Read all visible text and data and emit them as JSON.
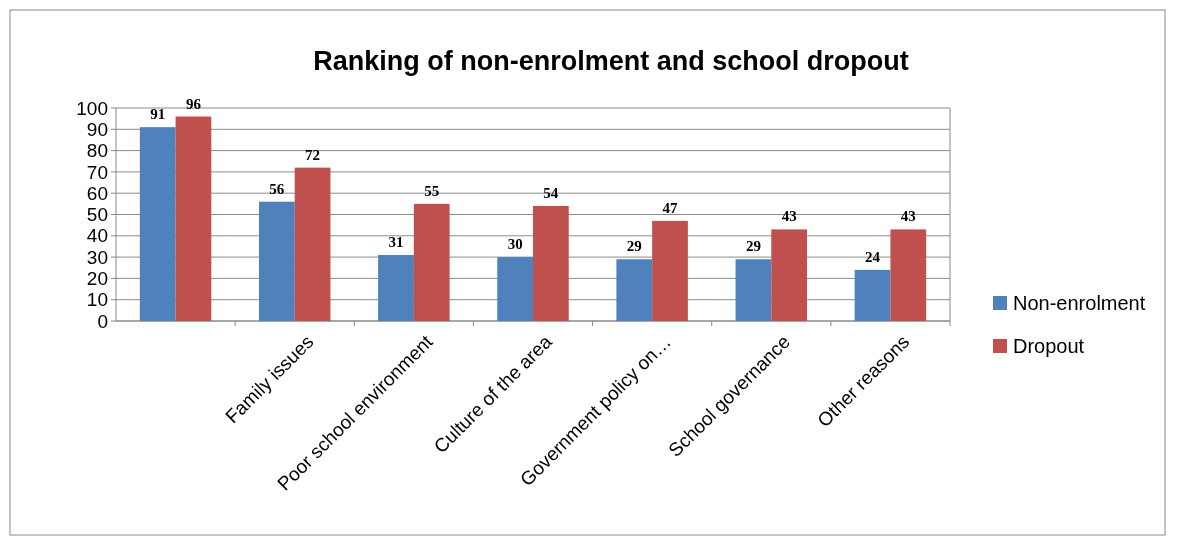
{
  "chart_data": {
    "type": "bar",
    "title": "Ranking of non-enrolment and school dropout",
    "categories": [
      null,
      "Family  issues",
      "Poor school environment",
      "Culture of the area",
      "Government policy on…",
      "School governance",
      "Other reasons"
    ],
    "series": [
      {
        "name": "Non-enrolment",
        "color": "#4f81bd",
        "values": [
          91,
          56,
          31,
          30,
          29,
          29,
          24
        ]
      },
      {
        "name": "Dropout",
        "color": "#c0504d",
        "values": [
          96,
          72,
          55,
          54,
          47,
          43,
          43
        ]
      }
    ],
    "ylim": [
      0,
      100
    ],
    "yticks": [
      0,
      10,
      20,
      30,
      40,
      50,
      60,
      70,
      80,
      90,
      100
    ],
    "grid": "y",
    "legend": "right",
    "data_labels": true
  }
}
